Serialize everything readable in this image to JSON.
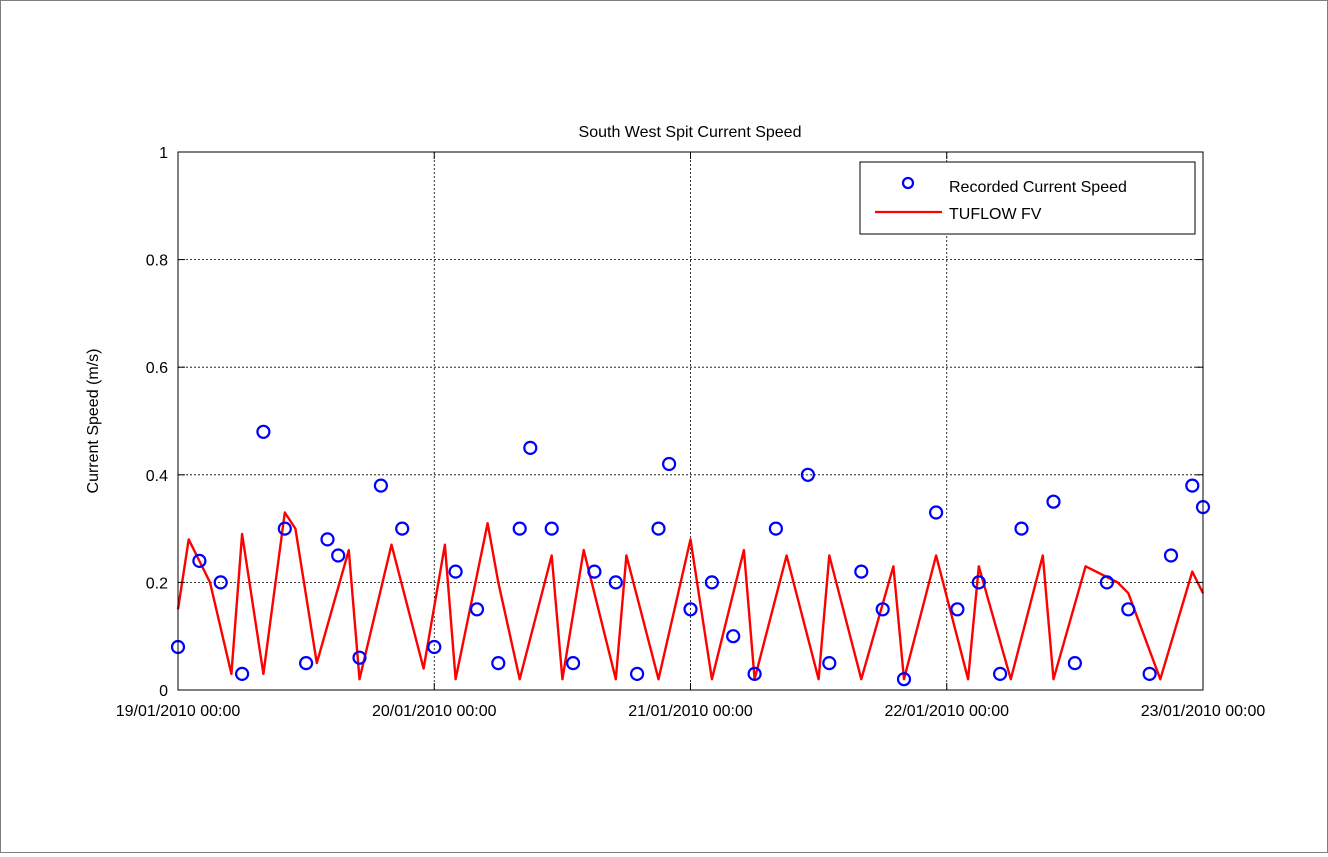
{
  "chart_data": {
    "type": "scatter",
    "title": "South West Spit Current Speed",
    "xlabel": "",
    "ylabel": "Current Speed (m/s)",
    "x_unit": "days from 19/01/2010 00:00",
    "xlim": [
      "19/01/2010 00:00",
      "23/01/2010 00:00"
    ],
    "ylim": [
      0,
      1
    ],
    "xticks": [
      "19/01/2010 00:00",
      "20/01/2010 00:00",
      "21/01/2010 00:00",
      "22/01/2010 00:00",
      "23/01/2010 00:00"
    ],
    "yticks": [
      "0",
      "0.2",
      "0.4",
      "0.6",
      "0.8",
      "1"
    ],
    "grid": true,
    "legend_position": "top-right",
    "series": [
      {
        "name": "Recorded Current Speed",
        "style": "circles",
        "color": "#0000ff",
        "t": [
          "19/01/2010 00:00",
          "19/01/2010 02:00",
          "19/01/2010 04:00",
          "19/01/2010 06:00",
          "19/01/2010 08:00",
          "19/01/2010 10:00",
          "19/01/2010 12:00",
          "19/01/2010 14:00",
          "19/01/2010 15:00",
          "19/01/2010 17:00",
          "19/01/2010 19:00",
          "19/01/2010 21:00",
          "20/01/2010 00:00",
          "20/01/2010 02:00",
          "20/01/2010 04:00",
          "20/01/2010 06:00",
          "20/01/2010 08:00",
          "20/01/2010 09:00",
          "20/01/2010 11:00",
          "20/01/2010 13:00",
          "20/01/2010 15:00",
          "20/01/2010 17:00",
          "20/01/2010 19:00",
          "20/01/2010 21:00",
          "20/01/2010 22:00",
          "21/01/2010 00:00",
          "21/01/2010 02:00",
          "21/01/2010 04:00",
          "21/01/2010 06:00",
          "21/01/2010 08:00",
          "21/01/2010 11:00",
          "21/01/2010 13:00",
          "21/01/2010 16:00",
          "21/01/2010 18:00",
          "21/01/2010 20:00",
          "21/01/2010 23:00",
          "22/01/2010 01:00",
          "22/01/2010 03:00",
          "22/01/2010 05:00",
          "22/01/2010 07:00",
          "22/01/2010 10:00",
          "22/01/2010 12:00",
          "22/01/2010 15:00",
          "22/01/2010 17:00",
          "22/01/2010 19:00",
          "22/01/2010 21:00",
          "22/01/2010 23:00",
          "23/01/2010 00:00"
        ],
        "y": [
          0.08,
          0.24,
          0.2,
          0.03,
          0.48,
          0.3,
          0.05,
          0.28,
          0.25,
          0.06,
          0.38,
          0.3,
          0.08,
          0.22,
          0.15,
          0.05,
          0.3,
          0.45,
          0.3,
          0.05,
          0.22,
          0.2,
          0.03,
          0.3,
          0.42,
          0.15,
          0.2,
          0.1,
          0.03,
          0.3,
          0.4,
          0.05,
          0.22,
          0.15,
          0.02,
          0.33,
          0.15,
          0.2,
          0.03,
          0.3,
          0.35,
          0.05,
          0.2,
          0.15,
          0.03,
          0.25,
          0.38,
          0.34
        ]
      },
      {
        "name": "TUFLOW FV",
        "style": "line",
        "color": "#ff0000",
        "t": [
          "19/01/2010 00:00",
          "19/01/2010 01:00",
          "19/01/2010 03:00",
          "19/01/2010 05:00",
          "19/01/2010 06:00",
          "19/01/2010 08:00",
          "19/01/2010 10:00",
          "19/01/2010 11:00",
          "19/01/2010 13:00",
          "19/01/2010 16:00",
          "19/01/2010 17:00",
          "19/01/2010 20:00",
          "19/01/2010 23:00",
          "20/01/2010 01:00",
          "20/01/2010 02:00",
          "20/01/2010 05:00",
          "20/01/2010 06:00",
          "20/01/2010 08:00",
          "20/01/2010 11:00",
          "20/01/2010 12:00",
          "20/01/2010 14:00",
          "20/01/2010 17:00",
          "20/01/2010 18:00",
          "20/01/2010 21:00",
          "21/01/2010 00:00",
          "21/01/2010 02:00",
          "21/01/2010 05:00",
          "21/01/2010 06:00",
          "21/01/2010 09:00",
          "21/01/2010 12:00",
          "21/01/2010 13:00",
          "21/01/2010 16:00",
          "21/01/2010 19:00",
          "21/01/2010 20:00",
          "21/01/2010 23:00",
          "22/01/2010 02:00",
          "22/01/2010 03:00",
          "22/01/2010 06:00",
          "22/01/2010 09:00",
          "22/01/2010 10:00",
          "22/01/2010 13:00",
          "22/01/2010 16:00",
          "22/01/2010 17:00",
          "22/01/2010 20:00",
          "22/01/2010 23:00",
          "23/01/2010 00:00"
        ],
        "y": [
          0.15,
          0.28,
          0.2,
          0.03,
          0.29,
          0.03,
          0.33,
          0.3,
          0.05,
          0.26,
          0.02,
          0.27,
          0.04,
          0.27,
          0.02,
          0.31,
          0.2,
          0.02,
          0.25,
          0.02,
          0.26,
          0.02,
          0.25,
          0.02,
          0.28,
          0.02,
          0.26,
          0.02,
          0.25,
          0.02,
          0.25,
          0.02,
          0.23,
          0.02,
          0.25,
          0.02,
          0.23,
          0.02,
          0.25,
          0.02,
          0.23,
          0.2,
          0.18,
          0.02,
          0.22,
          0.18
        ]
      }
    ]
  }
}
